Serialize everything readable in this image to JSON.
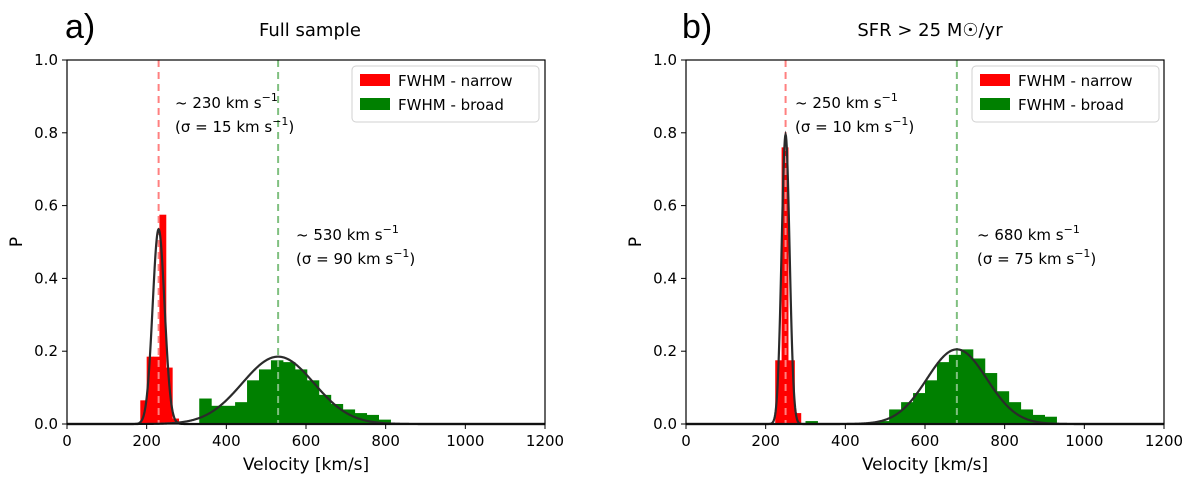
{
  "figure": {
    "x_axis_label": "Velocity [km/s]",
    "y_axis_label": "P"
  },
  "legend": {
    "narrow_label": "FWHM - narrow",
    "broad_label": "FWHM - broad"
  },
  "colors": {
    "narrow": "#ff0000",
    "broad": "#008000",
    "fit": "#2b2b2b",
    "narrow_line": "#ff8080",
    "broad_line": "#80c080"
  },
  "chart_data": [
    {
      "type": "bar",
      "panel_label": "a)",
      "title": "Full sample",
      "xlabel": "Velocity [km/s]",
      "ylabel": "P",
      "xlim": [
        0,
        1200
      ],
      "ylim": [
        0,
        1.0
      ],
      "xticks": [
        0,
        200,
        400,
        600,
        800,
        1000,
        1200
      ],
      "yticks": [
        0.0,
        0.2,
        0.4,
        0.6,
        0.8,
        1.0
      ],
      "annotations": {
        "narrow_value": "~  230 km s",
        "narrow_sigma": "(σ = 15 km s",
        "broad_value": "~  530 km s",
        "broad_sigma": "(σ = 90 km s",
        "unit_exponent": "−1",
        "close_paren": ")"
      },
      "series": [
        {
          "name": "FWHM - narrow",
          "bin_width": 16,
          "bins": [
            [
              184,
              0.065
            ],
            [
              200,
              0.185
            ],
            [
              216,
              0.185
            ],
            [
              232,
              0.575
            ],
            [
              248,
              0.155
            ],
            [
              264,
              0.015
            ]
          ],
          "fit": {
            "center": 230,
            "sigma": 15,
            "amplitude": 0.535
          }
        },
        {
          "name": "FWHM - broad",
          "bin_width": 30,
          "bins": [
            [
              332,
              0.07
            ],
            [
              362,
              0.05
            ],
            [
              392,
              0.05
            ],
            [
              422,
              0.06
            ],
            [
              452,
              0.12
            ],
            [
              482,
              0.15
            ],
            [
              512,
              0.175
            ],
            [
              542,
              0.17
            ],
            [
              572,
              0.15
            ],
            [
              602,
              0.12
            ],
            [
              632,
              0.08
            ],
            [
              662,
              0.055
            ],
            [
              692,
              0.04
            ],
            [
              722,
              0.03
            ],
            [
              752,
              0.025
            ],
            [
              782,
              0.012
            ]
          ],
          "fit": {
            "center": 530,
            "sigma": 90,
            "amplitude": 0.185
          }
        }
      ]
    },
    {
      "type": "bar",
      "panel_label": "b)",
      "title": "SFR > 25 M☉/yr",
      "xlabel": "Velocity [km/s]",
      "ylabel": "P",
      "xlim": [
        0,
        1200
      ],
      "ylim": [
        0,
        1.0
      ],
      "xticks": [
        0,
        200,
        400,
        600,
        800,
        1000,
        1200
      ],
      "yticks": [
        0.0,
        0.2,
        0.4,
        0.6,
        0.8,
        1.0
      ],
      "annotations": {
        "narrow_value": "~  250 km s",
        "narrow_sigma": "(σ = 10 km s",
        "broad_value": "~  680 km s",
        "broad_sigma": "(σ = 75 km s",
        "unit_exponent": "−1",
        "close_paren": ")"
      },
      "series": [
        {
          "name": "FWHM - narrow",
          "bin_width": 16,
          "bins": [
            [
              224,
              0.175
            ],
            [
              240,
              0.76
            ],
            [
              256,
              0.175
            ],
            [
              272,
              0.03
            ]
          ],
          "fit": {
            "center": 250,
            "sigma": 10,
            "amplitude": 0.795
          }
        },
        {
          "name": "FWHM - broad",
          "bin_width": 30,
          "bins": [
            [
              300,
              0.008
            ],
            [
              480,
              0.008
            ],
            [
              510,
              0.04
            ],
            [
              540,
              0.06
            ],
            [
              570,
              0.085
            ],
            [
              600,
              0.12
            ],
            [
              630,
              0.17
            ],
            [
              660,
              0.19
            ],
            [
              690,
              0.205
            ],
            [
              720,
              0.18
            ],
            [
              750,
              0.14
            ],
            [
              780,
              0.09
            ],
            [
              810,
              0.06
            ],
            [
              840,
              0.04
            ],
            [
              870,
              0.025
            ],
            [
              900,
              0.02
            ]
          ],
          "fit": {
            "center": 680,
            "sigma": 75,
            "amplitude": 0.205
          }
        }
      ]
    }
  ]
}
